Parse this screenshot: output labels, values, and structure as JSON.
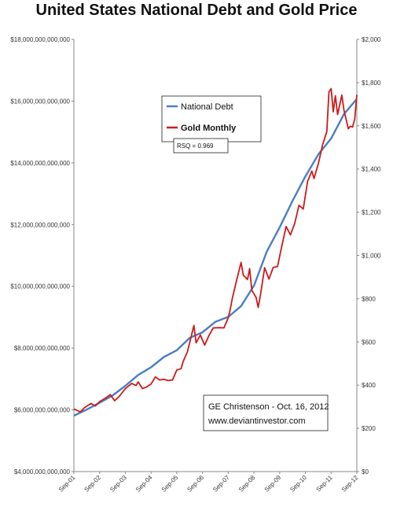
{
  "chart_data": {
    "type": "line",
    "title": "United States National Debt and Gold Price",
    "x_dates": [
      "Sep-01",
      "Sep-02",
      "Sep-03",
      "Sep-04",
      "Sep-05",
      "Sep-06",
      "Sep-07",
      "Sep-08",
      "Sep-09",
      "Sep-10",
      "Sep-11",
      "Sep-12"
    ],
    "y_left_ticks": [
      "$4,000,000,000,000",
      "$6,000,000,000,000",
      "$8,000,000,000,000",
      "$10,000,000,000,000",
      "$12,000,000,000,000",
      "$14,000,000,000,000",
      "$16,000,000,000,000",
      "$18,000,000,000,000"
    ],
    "y_right_ticks": [
      "$0",
      "$200",
      "$400",
      "$600",
      "$800",
      "$1,000",
      "$1,200",
      "$1,400",
      "$1,600",
      "$1,800",
      "$2,000"
    ],
    "y_left_range": [
      4000000000000,
      18000000000000
    ],
    "y_right_range": [
      0,
      2000
    ],
    "grid": false,
    "legend_position": "top-center",
    "series": [
      {
        "name": "National Debt",
        "axis": "left",
        "color": "#4a7fc1",
        "points": [
          [
            "2001-09",
            5810000000000.0
          ],
          [
            "2002-03",
            6010000000000.0
          ],
          [
            "2002-09",
            6230000000000.0
          ],
          [
            "2003-03",
            6460000000000.0
          ],
          [
            "2003-09",
            6780000000000.0
          ],
          [
            "2004-03",
            7130000000000.0
          ],
          [
            "2004-09",
            7380000000000.0
          ],
          [
            "2005-03",
            7710000000000.0
          ],
          [
            "2005-09",
            7930000000000.0
          ],
          [
            "2006-03",
            8330000000000.0
          ],
          [
            "2006-09",
            8510000000000.0
          ],
          [
            "2007-03",
            8850000000000.0
          ],
          [
            "2007-09",
            9010000000000.0
          ],
          [
            "2008-03",
            9360000000000.0
          ],
          [
            "2008-09",
            10020000000000.0
          ],
          [
            "2009-03",
            11130000000000.0
          ],
          [
            "2009-09",
            11910000000000.0
          ],
          [
            "2010-03",
            12770000000000.0
          ],
          [
            "2010-09",
            13560000000000.0
          ],
          [
            "2011-03",
            14270000000000.0
          ],
          [
            "2011-09",
            14790000000000.0
          ],
          [
            "2012-03",
            15580000000000.0
          ],
          [
            "2012-09",
            16070000000000.0
          ]
        ]
      },
      {
        "name": "Gold Monthly",
        "axis": "right",
        "color": "#cc1a1a",
        "points": [
          [
            "2001-09",
            290
          ],
          [
            "2001-12",
            276
          ],
          [
            "2002-02",
            296
          ],
          [
            "2002-05",
            315
          ],
          [
            "2002-07",
            304
          ],
          [
            "2002-09",
            323
          ],
          [
            "2002-12",
            342
          ],
          [
            "2003-02",
            356
          ],
          [
            "2003-04",
            328
          ],
          [
            "2003-06",
            346
          ],
          [
            "2003-09",
            384
          ],
          [
            "2003-12",
            408
          ],
          [
            "2004-02",
            398
          ],
          [
            "2004-03",
            415
          ],
          [
            "2004-05",
            384
          ],
          [
            "2004-07",
            392
          ],
          [
            "2004-09",
            405
          ],
          [
            "2004-11",
            438
          ],
          [
            "2005-01",
            424
          ],
          [
            "2005-03",
            427
          ],
          [
            "2005-05",
            421
          ],
          [
            "2005-07",
            424
          ],
          [
            "2005-09",
            470
          ],
          [
            "2005-11",
            476
          ],
          [
            "2005-12",
            510
          ],
          [
            "2006-02",
            555
          ],
          [
            "2006-05",
            676
          ],
          [
            "2006-06",
            596
          ],
          [
            "2006-08",
            632
          ],
          [
            "2006-10",
            585
          ],
          [
            "2006-12",
            629
          ],
          [
            "2007-02",
            665
          ],
          [
            "2007-05",
            666
          ],
          [
            "2007-07",
            665
          ],
          [
            "2007-09",
            712
          ],
          [
            "2007-10",
            754
          ],
          [
            "2007-11",
            806
          ],
          [
            "2008-01",
            889
          ],
          [
            "2008-03",
            968
          ],
          [
            "2008-04",
            909
          ],
          [
            "2008-06",
            889
          ],
          [
            "2008-07",
            939
          ],
          [
            "2008-08",
            839
          ],
          [
            "2008-10",
            806
          ],
          [
            "2008-11",
            760
          ],
          [
            "2008-12",
            816
          ],
          [
            "2009-02",
            943
          ],
          [
            "2009-04",
            891
          ],
          [
            "2009-06",
            945
          ],
          [
            "2009-08",
            949
          ],
          [
            "2009-10",
            1043
          ],
          [
            "2009-12",
            1134
          ],
          [
            "2010-02",
            1095
          ],
          [
            "2010-04",
            1148
          ],
          [
            "2010-06",
            1232
          ],
          [
            "2010-08",
            1215
          ],
          [
            "2010-10",
            1342
          ],
          [
            "2010-12",
            1391
          ],
          [
            "2011-01",
            1356
          ],
          [
            "2011-03",
            1423
          ],
          [
            "2011-05",
            1512
          ],
          [
            "2011-07",
            1573
          ],
          [
            "2011-08",
            1756
          ],
          [
            "2011-09",
            1772
          ],
          [
            "2011-10",
            1665
          ],
          [
            "2011-11",
            1739
          ],
          [
            "2011-12",
            1652
          ],
          [
            "2012-02",
            1742
          ],
          [
            "2012-03",
            1673
          ],
          [
            "2012-05",
            1586
          ],
          [
            "2012-06",
            1598
          ],
          [
            "2012-07",
            1594
          ],
          [
            "2012-08",
            1630
          ],
          [
            "2012-09",
            1744
          ]
        ]
      }
    ],
    "annotations": [
      {
        "text": "RSQ = 0.969"
      },
      {
        "text": "GE Christenson - Oct. 16, 2012"
      },
      {
        "text": "www.deviantinvestor.com"
      }
    ]
  }
}
